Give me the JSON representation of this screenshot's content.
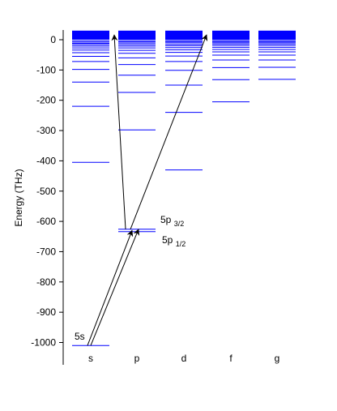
{
  "chart_data": {
    "type": "energy-level-diagram",
    "ylabel": "Energy (THz)",
    "ylim": [
      -1010,
      30
    ],
    "yticks": [
      0,
      -100,
      -200,
      -300,
      -400,
      -500,
      -600,
      -700,
      -800,
      -900,
      -1000
    ],
    "categories": [
      "s",
      "p",
      "d",
      "f",
      "g"
    ],
    "band_color": "#0000ff",
    "band_range": [
      0,
      30
    ],
    "levels": {
      "s": [
        -1010,
        -405,
        -220,
        -140,
        -98,
        -72,
        -55,
        -43,
        -34,
        -27,
        -21,
        -16,
        -12,
        -8,
        -4
      ],
      "p": [
        -634,
        -626,
        -298,
        -174,
        -117,
        -82,
        -60,
        -45,
        -35,
        -27,
        -21,
        -16,
        -11,
        -7,
        -3
      ],
      "d": [
        -430,
        -240,
        -150,
        -101,
        -72,
        -54,
        -42,
        -33,
        -26,
        -20,
        -15,
        -10,
        -6,
        -3
      ],
      "f": [
        -205,
        -132,
        -92,
        -67,
        -51,
        -40,
        -32,
        -25,
        -19,
        -14,
        -10,
        -6,
        -3
      ],
      "g": [
        -131,
        -91,
        -67,
        -51,
        -40,
        -32,
        -25,
        -19,
        -14,
        -10,
        -6,
        -3
      ]
    },
    "arrows": [
      {
        "from": {
          "category": "s",
          "energy": -1010
        },
        "to": {
          "category": "p",
          "energy": -630
        }
      },
      {
        "from": {
          "category": "s",
          "energy": -1010
        },
        "to": {
          "category": "p",
          "energy": -626
        }
      },
      {
        "from": {
          "category": "p",
          "energy": -626
        },
        "to": {
          "category": "p",
          "energy": 0
        }
      },
      {
        "from": {
          "category": "p",
          "energy": -626
        },
        "to": {
          "category": "d",
          "energy": 0
        }
      }
    ],
    "annotations": {
      "ground": {
        "main": "5s",
        "sub": ""
      },
      "p32": {
        "main": "5p",
        "sub": "3/2"
      },
      "p12": {
        "main": "5p",
        "sub": "1/2"
      }
    }
  }
}
